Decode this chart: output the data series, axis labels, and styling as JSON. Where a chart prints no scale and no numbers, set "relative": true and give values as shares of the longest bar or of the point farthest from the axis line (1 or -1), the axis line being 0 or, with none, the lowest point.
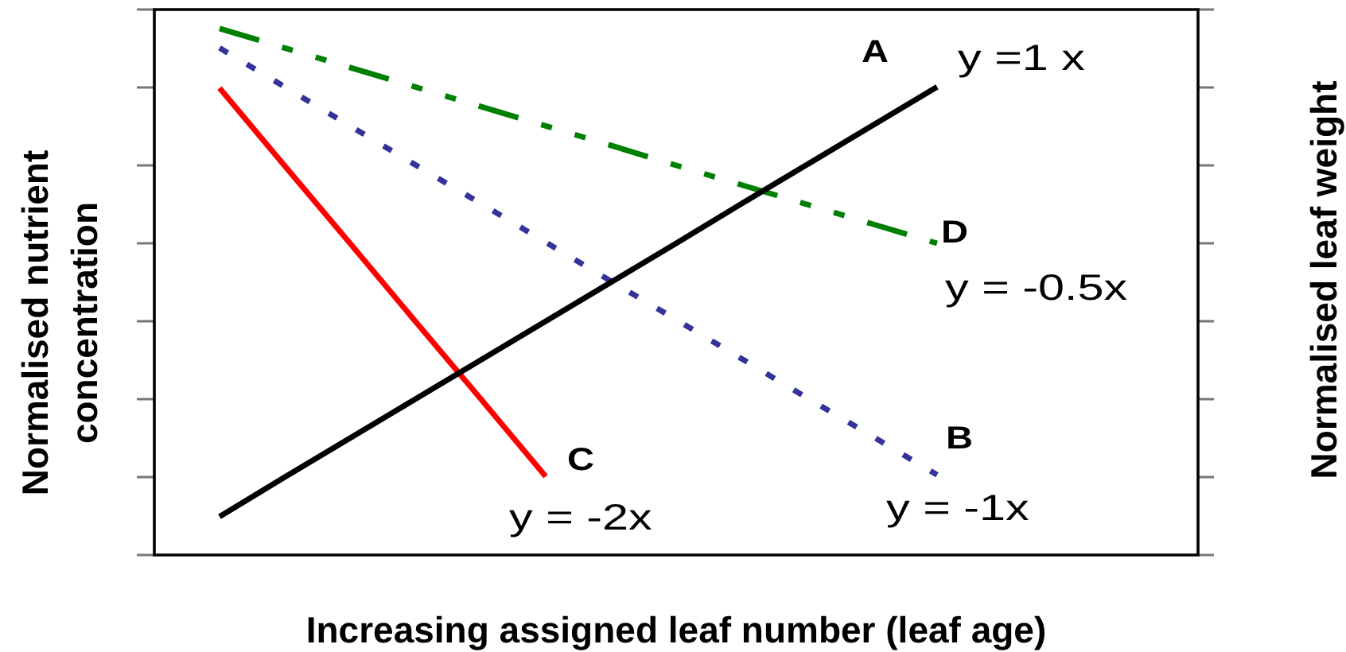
{
  "chart_data": {
    "type": "line",
    "xlabel": "Increasing assigned leaf number (leaf age)",
    "ylabel": "Normalised nutrient concentration",
    "y2label": "Normalised leaf weight",
    "relative": true,
    "legend": false,
    "marker": "none",
    "tick_labels": false,
    "categories": [
      null,
      null,
      null,
      null,
      null,
      null,
      null,
      null,
      null,
      null,
      null,
      null,
      null,
      null,
      null,
      null,
      null
    ],
    "series": [
      {
        "name": "A",
        "color": "#000000",
        "line_style": "solid",
        "values": [
          null,
          0.073,
          0.148,
          0.222,
          0.296,
          0.37,
          0.444,
          0.518,
          0.592,
          0.667,
          0.741,
          0.815,
          0.889,
          null,
          null,
          null,
          null
        ]
      },
      {
        "name": "B",
        "color": "#333399",
        "line_style": "dotted",
        "values": [
          null,
          0.963,
          0.889,
          0.815,
          0.741,
          0.668,
          0.594,
          0.52,
          0.447,
          0.373,
          0.299,
          0.226,
          0.152,
          null,
          null,
          null,
          null
        ]
      },
      {
        "name": "C",
        "color": "#ff0000",
        "line_style": "solid",
        "values": [
          null,
          0.887,
          0.739,
          0.592,
          0.444,
          0.297,
          0.149,
          null,
          null,
          null,
          null,
          null,
          null,
          null,
          null,
          null,
          null
        ]
      },
      {
        "name": "D",
        "color": "#008000",
        "line_style": "dashed",
        "values": [
          null,
          1,
          0.963,
          0.926,
          0.889,
          0.852,
          0.815,
          0.778,
          0.74,
          0.703,
          0.666,
          0.629,
          0.592,
          null,
          null,
          null,
          null
        ]
      }
    ],
    "annotations": [
      "y =1 x",
      "y = -1x",
      "y = -2x",
      "y = -0.5x"
    ]
  }
}
